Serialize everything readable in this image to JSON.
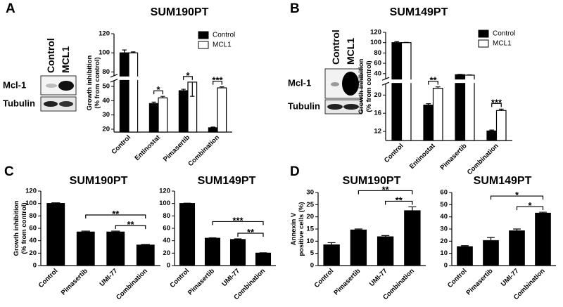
{
  "chart_data": [
    {
      "type": "bar",
      "panel_label": "A",
      "title": "SUM190PT",
      "y_label": [
        "Growth inhibition",
        "(% from control)"
      ],
      "categories": [
        "Control",
        "Entinostat",
        "Pimasertib",
        "Combination"
      ],
      "series": [
        {
          "name": "Control",
          "color": "#000000",
          "values": [
            100,
            38,
            47,
            21
          ],
          "errors": [
            3,
            1,
            1,
            0.5
          ]
        },
        {
          "name": "MCL1",
          "color": "#ffffff",
          "values": [
            100,
            42,
            53,
            49
          ],
          "errors": [
            1,
            1,
            1.5,
            0.7
          ]
        }
      ],
      "ysegments": [
        {
          "ylim": [
            18,
            54
          ],
          "yticks": [
            20,
            30,
            40,
            50
          ]
        },
        {
          "ylim": [
            76,
            120
          ],
          "yticks": [
            80,
            100,
            120
          ]
        }
      ],
      "legend": "upper right",
      "annotations": [
        {
          "text": "*",
          "category": "Entinostat"
        },
        {
          "text": "*",
          "category": "Pimasertib"
        },
        {
          "text": "***",
          "category": "Combination"
        }
      ]
    },
    {
      "type": "bar",
      "panel_label": "B",
      "title": "SUM149PT",
      "y_label": [
        "Growth inhibition",
        "(% from control)"
      ],
      "categories": [
        "Control",
        "Entinostat",
        "Pimasertib",
        "Combination"
      ],
      "series": [
        {
          "name": "Control",
          "color": "#000000",
          "values": [
            100,
            17.8,
            38,
            12.1
          ],
          "errors": [
            2,
            0.3,
            0.5,
            0.2
          ]
        },
        {
          "name": "MCL1",
          "color": "#ffffff",
          "values": [
            100,
            21.5,
            37,
            16.6
          ],
          "errors": [
            0.5,
            0.3,
            0.5,
            0.3
          ]
        }
      ],
      "ysegments": [
        {
          "ylim": [
            10,
            22.5
          ],
          "yticks": [
            12,
            16,
            20
          ]
        },
        {
          "ylim": [
            30,
            120
          ],
          "yticks": [
            40,
            60,
            80,
            100,
            120
          ]
        }
      ],
      "legend": "upper right",
      "annotations": [
        {
          "text": "**",
          "category": "Entinostat"
        },
        {
          "text": "***",
          "category": "Combination"
        }
      ]
    },
    {
      "type": "bar",
      "panel_label": "C",
      "title": "SUM190PT",
      "y_label": [
        "Growth inhibition",
        "(% from control)"
      ],
      "categories": [
        "Control",
        "Pimasertib",
        "UMI-77",
        "Combination"
      ],
      "series": [
        {
          "color": "#000000",
          "values": [
            100,
            54,
            54,
            33
          ],
          "errors": [
            1,
            1.5,
            1.5,
            1
          ]
        }
      ],
      "ylim": [
        0,
        120
      ],
      "yticks": [
        0,
        20,
        40,
        60,
        80,
        100,
        120
      ],
      "annotations": [
        {
          "text": "**",
          "between": [
            "Pimasertib",
            "Combination"
          ]
        },
        {
          "text": "**",
          "between": [
            "UMI-77",
            "Combination"
          ]
        }
      ]
    },
    {
      "type": "bar",
      "title": "SUM149PT",
      "categories": [
        "Control",
        "Pimasertib",
        "UMI-77",
        "Combination"
      ],
      "series": [
        {
          "color": "#000000",
          "values": [
            100,
            44,
            42,
            20
          ],
          "errors": [
            0.5,
            0.8,
            1,
            0.5
          ]
        }
      ],
      "ylim": [
        0,
        120
      ],
      "yticks": [
        0,
        20,
        40,
        60,
        80,
        100,
        120
      ],
      "annotations": [
        {
          "text": "***",
          "between": [
            "Pimasertib",
            "Combination"
          ]
        },
        {
          "text": "**",
          "between": [
            "UMI-77",
            "Combination"
          ]
        }
      ]
    },
    {
      "type": "bar",
      "panel_label": "D",
      "title": "SUM190PT",
      "y_label": [
        "Annexin V",
        "positive cells (%)"
      ],
      "categories": [
        "Control",
        "Pimasertib",
        "UMI-77",
        "Combination"
      ],
      "series": [
        {
          "color": "#000000",
          "values": [
            8.5,
            14.6,
            11.8,
            22.5
          ],
          "errors": [
            0.9,
            0.4,
            0.5,
            1.6
          ]
        }
      ],
      "ylim": [
        0,
        30
      ],
      "yticks": [
        0,
        5,
        10,
        15,
        20,
        25,
        30
      ],
      "annotations": [
        {
          "text": "**",
          "between": [
            "Pimasertib",
            "Combination"
          ]
        },
        {
          "text": "**",
          "between": [
            "UMI-77",
            "Combination"
          ]
        }
      ]
    },
    {
      "type": "bar",
      "title": "SUM149PT",
      "categories": [
        "Control",
        "Pimasertib",
        "UMI-77",
        "Combination"
      ],
      "series": [
        {
          "color": "#000000",
          "values": [
            15.5,
            20.5,
            28.5,
            43
          ],
          "errors": [
            0.8,
            2.5,
            1.5,
            0.8
          ]
        }
      ],
      "ylim": [
        0,
        60
      ],
      "yticks": [
        0,
        10,
        20,
        30,
        40,
        50,
        60
      ],
      "annotations": [
        {
          "text": "*",
          "between": [
            "Pimasertib",
            "Combination"
          ]
        },
        {
          "text": "*",
          "between": [
            "UMI-77",
            "Combination"
          ]
        }
      ]
    }
  ],
  "blots": [
    {
      "columns": [
        "Control",
        "MCL1"
      ],
      "rows": [
        "Mcl-1",
        "Tubulin"
      ]
    },
    {
      "columns": [
        "Control",
        "MCL1"
      ],
      "rows": [
        "Mcl-1",
        "Tubulin"
      ]
    }
  ]
}
